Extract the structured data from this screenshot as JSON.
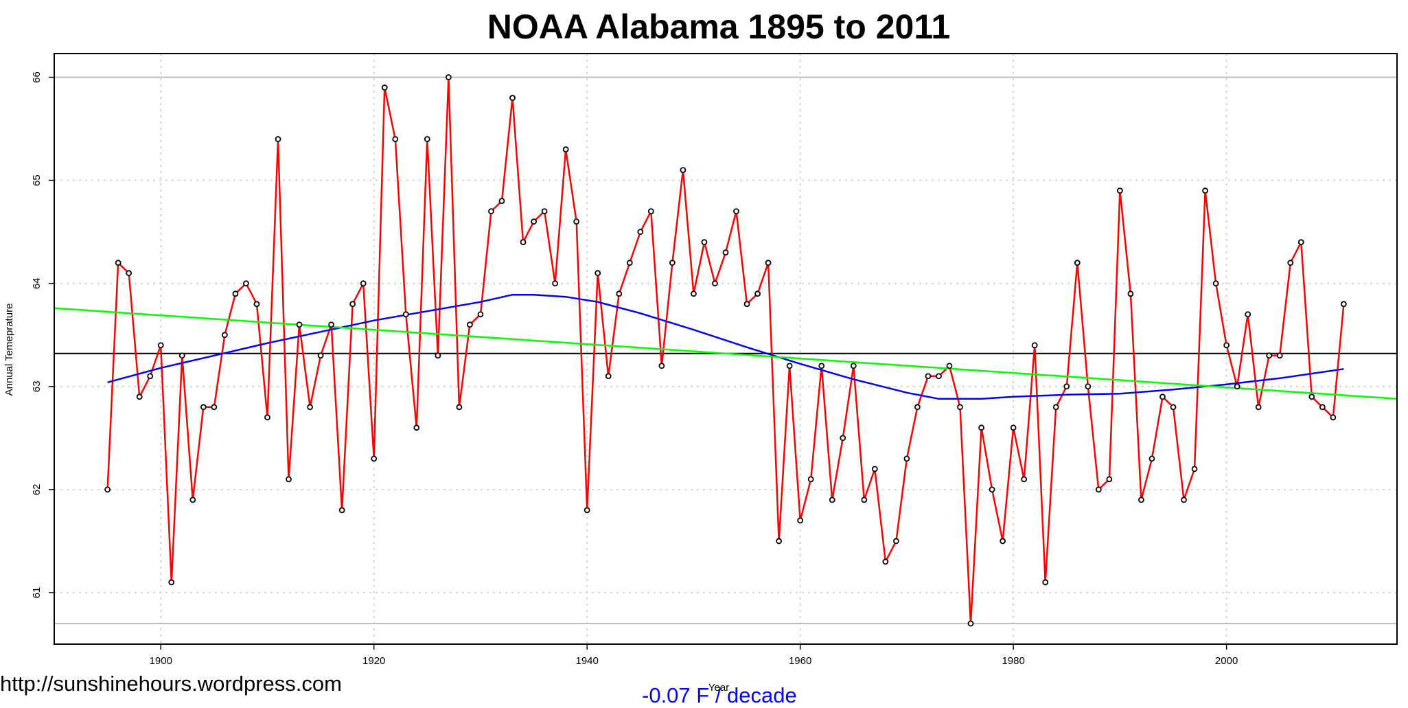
{
  "chart_data": {
    "type": "line",
    "title": "NOAA  Alabama 1895 to 2011",
    "xlabel": "Year",
    "ylabel": "Annual Temeprature",
    "xlim": [
      1890,
      2016
    ],
    "ylim": [
      60.5,
      66.23
    ],
    "x_ticks": [
      1900,
      1920,
      1940,
      1960,
      1980,
      2000
    ],
    "y_ticks": [
      61,
      62,
      63,
      64,
      65,
      66
    ],
    "grid": true,
    "series": [
      {
        "kind": "annual",
        "color": "#ff0000",
        "x": [
          1895,
          1896,
          1897,
          1898,
          1899,
          1900,
          1901,
          1902,
          1903,
          1904,
          1905,
          1906,
          1907,
          1908,
          1909,
          1910,
          1911,
          1912,
          1913,
          1914,
          1915,
          1916,
          1917,
          1918,
          1919,
          1920,
          1921,
          1922,
          1923,
          1924,
          1925,
          1926,
          1927,
          1928,
          1929,
          1930,
          1931,
          1932,
          1933,
          1934,
          1935,
          1936,
          1937,
          1938,
          1939,
          1940,
          1941,
          1942,
          1943,
          1944,
          1945,
          1946,
          1947,
          1948,
          1949,
          1950,
          1951,
          1952,
          1953,
          1954,
          1955,
          1956,
          1957,
          1958,
          1959,
          1960,
          1961,
          1962,
          1963,
          1964,
          1965,
          1966,
          1967,
          1968,
          1969,
          1970,
          1971,
          1972,
          1973,
          1974,
          1975,
          1976,
          1977,
          1978,
          1979,
          1980,
          1981,
          1982,
          1983,
          1984,
          1985,
          1986,
          1987,
          1988,
          1989,
          1990,
          1991,
          1992,
          1993,
          1994,
          1995,
          1996,
          1997,
          1998,
          1999,
          2000,
          2001,
          2002,
          2003,
          2004,
          2005,
          2006,
          2007,
          2008,
          2009,
          2010,
          2011
        ],
        "values": [
          62.0,
          64.2,
          64.1,
          62.9,
          63.1,
          63.4,
          61.1,
          63.3,
          61.9,
          62.8,
          62.8,
          63.5,
          63.9,
          64.0,
          63.8,
          62.7,
          65.4,
          62.1,
          63.6,
          62.8,
          63.3,
          63.6,
          61.8,
          63.8,
          64.0,
          62.3,
          65.9,
          65.4,
          63.7,
          62.6,
          65.4,
          63.3,
          66.0,
          62.8,
          63.6,
          63.7,
          64.7,
          64.8,
          65.8,
          64.4,
          64.6,
          64.7,
          64.0,
          65.3,
          64.6,
          61.8,
          64.1,
          63.1,
          63.9,
          64.2,
          64.5,
          64.7,
          63.2,
          64.2,
          65.1,
          63.9,
          64.4,
          64.0,
          64.3,
          64.7,
          63.8,
          63.9,
          64.2,
          61.5,
          63.2,
          61.7,
          62.1,
          63.2,
          61.9,
          62.5,
          63.2,
          61.9,
          62.2,
          61.3,
          61.5,
          62.3,
          62.8,
          63.1,
          63.1,
          63.2,
          62.8,
          60.7,
          62.6,
          62.0,
          61.5,
          62.6,
          62.1,
          63.4,
          61.1,
          62.8,
          63.0,
          64.2,
          63.0,
          62.0,
          62.1,
          64.9,
          63.9,
          61.9,
          62.3,
          62.9,
          62.8,
          61.9,
          62.2,
          64.9,
          64.0,
          63.4,
          63.0,
          63.7,
          62.8,
          63.3,
          63.3,
          64.2,
          64.4,
          62.9,
          62.8,
          62.7,
          63.8
        ]
      },
      {
        "kind": "smooth",
        "color": "#0000ff",
        "x": [
          1895,
          1900,
          1905,
          1910,
          1915,
          1920,
          1925,
          1930,
          1933,
          1935,
          1938,
          1941,
          1945,
          1950,
          1955,
          1960,
          1965,
          1970,
          1973,
          1977,
          1980,
          1985,
          1990,
          1995,
          2000,
          2005,
          2011
        ],
        "values": [
          63.04,
          63.18,
          63.3,
          63.42,
          63.53,
          63.64,
          63.73,
          63.82,
          63.89,
          63.89,
          63.87,
          63.82,
          63.71,
          63.55,
          63.38,
          63.22,
          63.07,
          62.94,
          62.88,
          62.88,
          62.9,
          62.92,
          62.93,
          62.97,
          63.02,
          63.08,
          63.17
        ]
      },
      {
        "kind": "trend",
        "color": "#00ff00",
        "x": [
          1890,
          2016
        ],
        "values": [
          63.76,
          62.88
        ]
      }
    ],
    "hlines": [
      {
        "y": 63.32,
        "color": "#000000"
      },
      {
        "y": 66.0,
        "color": "#bebebe"
      },
      {
        "y": 60.7,
        "color": "#bebebe"
      }
    ]
  },
  "footer": {
    "source_url": "http://sunshinehours.wordpress.com",
    "trend_text": "-0.07 F / decade",
    "trend_color": "#0000ff"
  }
}
